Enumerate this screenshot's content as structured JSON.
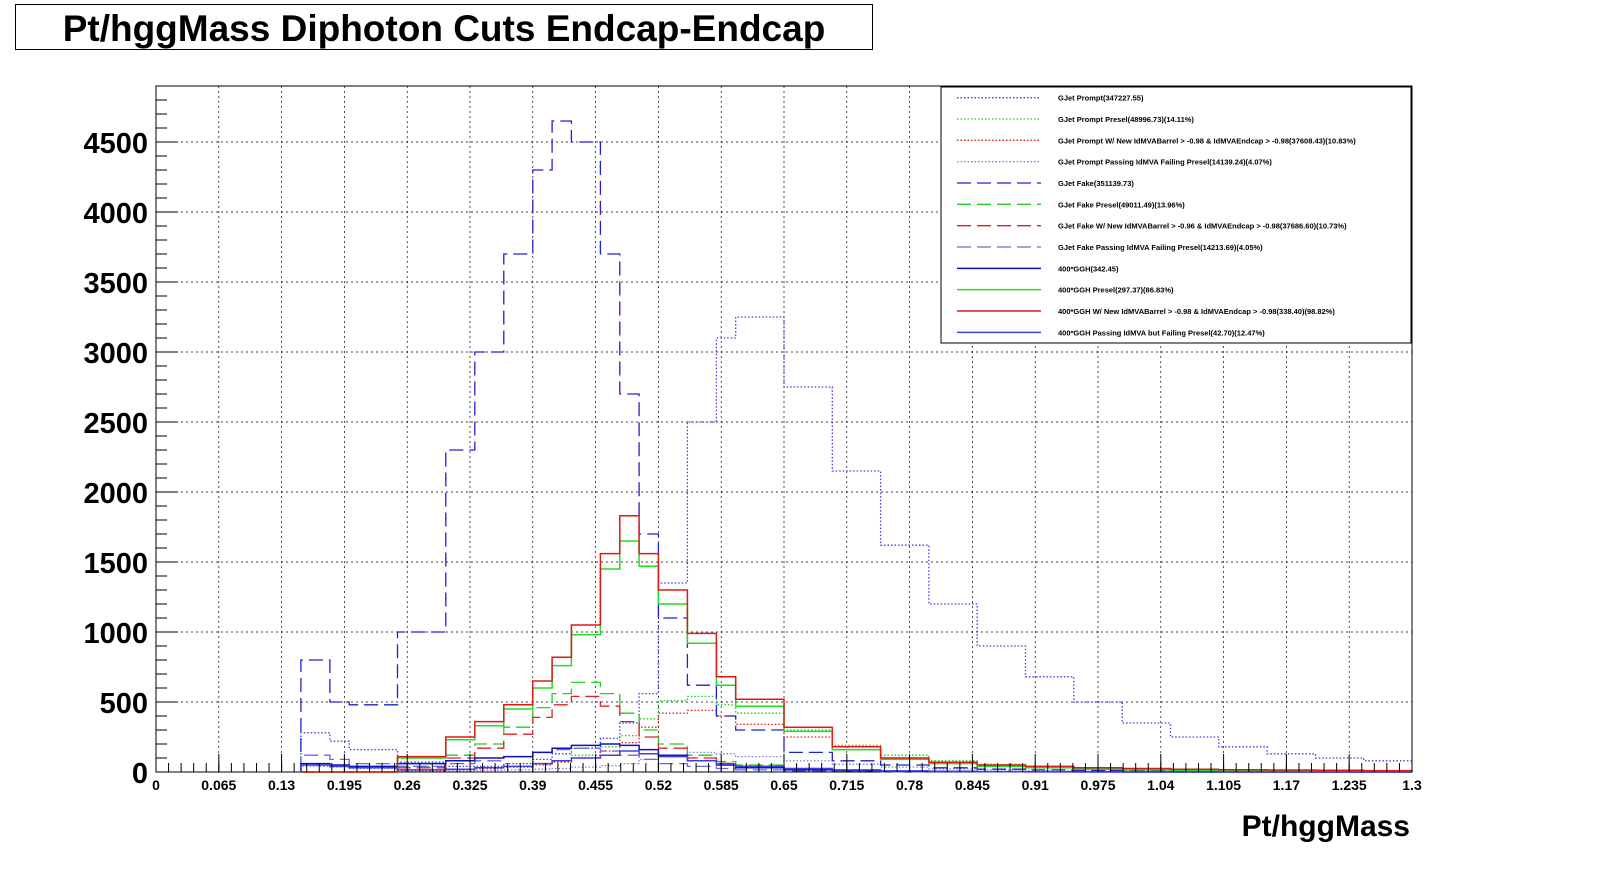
{
  "title": "Pt/hggMass Diphoton Cuts Endcap-Endcap",
  "chart_data": {
    "type": "line",
    "title": "Pt/hggMass Diphoton Cuts Endcap-Endcap",
    "xlabel": "Pt/hggMass",
    "ylabel": "",
    "xlim": [
      0,
      1.3
    ],
    "ylim": [
      0,
      4900
    ],
    "x_ticks": [
      "0",
      "0.065",
      "0.13",
      "0.195",
      "0.26",
      "0.325",
      "0.39",
      "0.455",
      "0.52",
      "0.585",
      "0.65",
      "0.715",
      "0.78",
      "0.845",
      "0.91",
      "0.975",
      "1.04",
      "1.105",
      "1.17",
      "1.235",
      "1.3"
    ],
    "y_ticks": [
      "0",
      "500",
      "1000",
      "1500",
      "2000",
      "2500",
      "3000",
      "3500",
      "4000",
      "4500"
    ],
    "grid": true,
    "legend_position": "top-right",
    "x": [
      0.15,
      0.18,
      0.2,
      0.25,
      0.3,
      0.33,
      0.36,
      0.39,
      0.41,
      0.43,
      0.46,
      0.48,
      0.5,
      0.52,
      0.55,
      0.58,
      0.6,
      0.65,
      0.7,
      0.75,
      0.8,
      0.85,
      0.9,
      0.95,
      1.0,
      1.05,
      1.1,
      1.15,
      1.2,
      1.25,
      1.3
    ],
    "series": [
      {
        "name": "GJet Prompt(347227.55)",
        "color": "#3c3ce6",
        "style": "dotted",
        "values": [
          280,
          220,
          160,
          70,
          40,
          40,
          60,
          90,
          130,
          170,
          240,
          350,
          560,
          1350,
          2500,
          3100,
          3250,
          2750,
          2150,
          1620,
          1200,
          900,
          680,
          500,
          350,
          250,
          180,
          130,
          100,
          80,
          60
        ]
      },
      {
        "name": "GJet Prompt Presel(48996.73)(14.11%)",
        "color": "#22cc22",
        "style": "dotted",
        "values": [
          0,
          0,
          0,
          10,
          20,
          30,
          40,
          60,
          80,
          120,
          180,
          260,
          380,
          510,
          540,
          480,
          420,
          300,
          190,
          120,
          80,
          55,
          40,
          30,
          20,
          15,
          10,
          8,
          6,
          5,
          4
        ]
      },
      {
        "name": "GJet Prompt W/ New IdMVABarrel > -0.98 & IdMVAEndcap > -0.98(37608.43)(10.83%)",
        "color": "#e02020",
        "style": "dotted",
        "values": [
          0,
          0,
          0,
          10,
          15,
          25,
          35,
          50,
          70,
          100,
          150,
          210,
          320,
          420,
          440,
          400,
          340,
          250,
          160,
          100,
          65,
          45,
          32,
          24,
          18,
          13,
          9,
          7,
          5,
          4,
          3
        ]
      },
      {
        "name": "GJet Prompt Passing IdMVA Failing Presel(14139.24)(4.07%)",
        "color": "#8080e0",
        "style": "dotted",
        "values": [
          40,
          35,
          25,
          15,
          10,
          12,
          15,
          20,
          25,
          35,
          45,
          60,
          90,
          120,
          140,
          130,
          110,
          80,
          55,
          35,
          22,
          15,
          11,
          8,
          6,
          5,
          4,
          3,
          2,
          2,
          1
        ]
      },
      {
        "name": "GJet Fake(351139.73)",
        "color": "#2020d0",
        "style": "longdash",
        "values": [
          800,
          500,
          480,
          1000,
          2300,
          3000,
          3700,
          4300,
          4650,
          4500,
          3700,
          2700,
          1700,
          1100,
          620,
          400,
          300,
          140,
          80,
          50,
          30,
          20,
          15,
          12,
          10,
          8,
          6,
          5,
          4,
          3,
          2
        ]
      },
      {
        "name": "GJet Fake Presel(49011.49)(13.96%)",
        "color": "#22cc22",
        "style": "longdash",
        "values": [
          0,
          0,
          0,
          40,
          120,
          200,
          320,
          460,
          560,
          640,
          560,
          420,
          300,
          200,
          120,
          75,
          50,
          25,
          12,
          7,
          5,
          3,
          2,
          2,
          1,
          1,
          1,
          0,
          0,
          0,
          0
        ]
      },
      {
        "name": "GJet Fake W/ New IdMVABarrel > -0.96 & IdMVAEndcap > -0.98(37686.60)(10.73%)",
        "color": "#e02020",
        "style": "longdash",
        "values": [
          0,
          0,
          0,
          30,
          100,
          170,
          270,
          390,
          480,
          540,
          470,
          360,
          250,
          170,
          100,
          62,
          42,
          20,
          10,
          6,
          4,
          3,
          2,
          1,
          1,
          1,
          0,
          0,
          0,
          0,
          0
        ]
      },
      {
        "name": "GJet Fake Passing IdMVA Failing Presel(14213.69)(4.05%)",
        "color": "#6a6ad8",
        "style": "longdash",
        "values": [
          120,
          90,
          60,
          40,
          60,
          80,
          110,
          140,
          160,
          170,
          150,
          120,
          90,
          60,
          40,
          25,
          15,
          8,
          4,
          2,
          1,
          1,
          1,
          0,
          0,
          0,
          0,
          0,
          0,
          0,
          0
        ]
      },
      {
        "name": "400*GGH(342.45)",
        "color": "#1010c0",
        "style": "solid",
        "values": [
          60,
          50,
          40,
          60,
          80,
          100,
          110,
          140,
          170,
          190,
          200,
          190,
          160,
          120,
          80,
          50,
          30,
          15,
          8,
          5,
          3,
          2,
          1,
          1,
          0,
          0,
          0,
          0,
          0,
          0,
          0
        ]
      },
      {
        "name": "400*GGH Presel(297.37)(86.83%)",
        "color": "#22dd22",
        "style": "solid",
        "values": [
          0,
          0,
          0,
          100,
          230,
          330,
          450,
          600,
          760,
          980,
          1450,
          1650,
          1470,
          1200,
          920,
          620,
          470,
          290,
          160,
          90,
          60,
          40,
          30,
          20,
          15,
          12,
          10,
          8,
          6,
          4,
          3
        ]
      },
      {
        "name": "400*GGH W/ New IdMVABarrel > -0.98 & IdMVAEndcap > -0.98(338.40)(98.82%)",
        "color": "#e01818",
        "style": "solid",
        "values": [
          0,
          0,
          0,
          110,
          250,
          360,
          480,
          650,
          820,
          1050,
          1560,
          1830,
          1560,
          1300,
          990,
          680,
          520,
          320,
          180,
          100,
          70,
          50,
          40,
          30,
          25,
          20,
          16,
          14,
          12,
          10,
          8
        ]
      },
      {
        "name": "400*GGH Passing IdMVA but Failing Presel(42.70)(12.47%)",
        "color": "#4040e0",
        "style": "solid",
        "values": [
          50,
          40,
          30,
          15,
          20,
          30,
          40,
          60,
          80,
          100,
          120,
          150,
          130,
          110,
          80,
          55,
          40,
          25,
          15,
          8,
          5,
          3,
          2,
          1,
          1,
          0,
          0,
          0,
          0,
          0,
          0
        ]
      }
    ]
  }
}
